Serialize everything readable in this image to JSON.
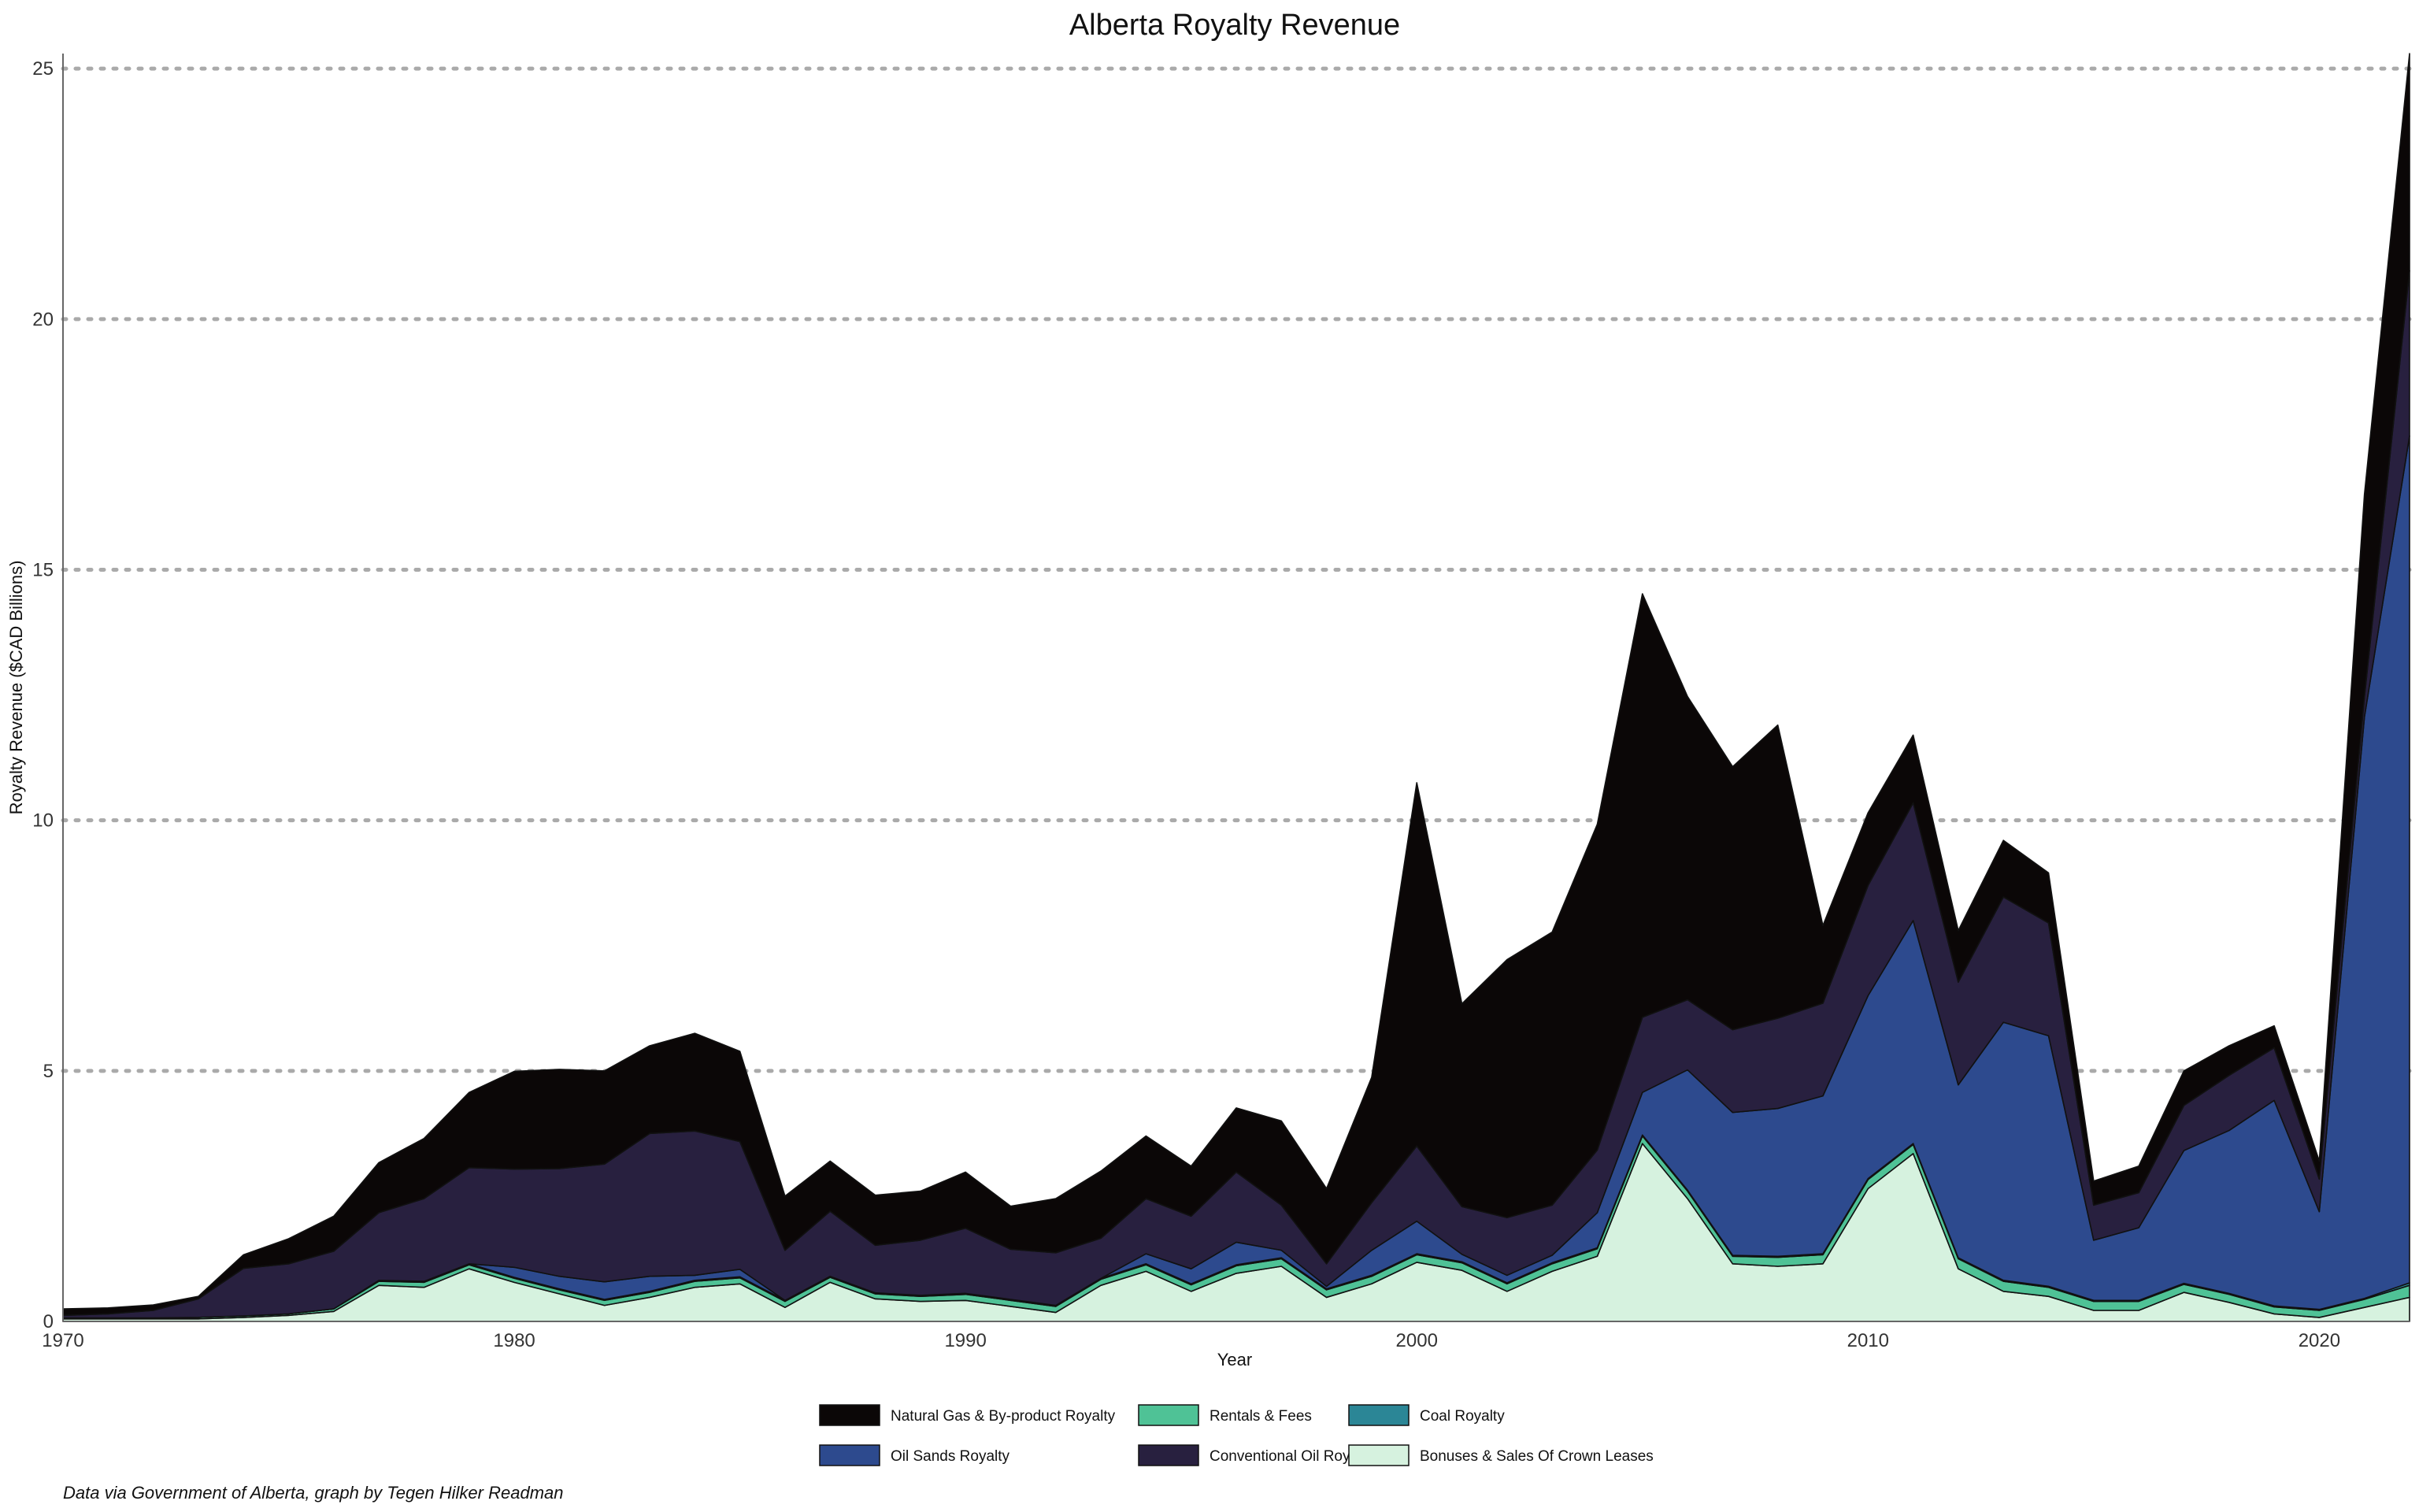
{
  "chart_data": {
    "type": "area",
    "stacked": true,
    "title": "Alberta Royalty Revenue",
    "xlabel": "Year",
    "ylabel": "Royalty Revenue ($CAD Billions)",
    "xlim": [
      1970,
      2022
    ],
    "ylim": [
      0,
      25.3
    ],
    "x_ticks": [
      1970,
      1980,
      1990,
      2000,
      2010,
      2020
    ],
    "y_ticks": [
      0,
      5,
      10,
      15,
      20,
      25
    ],
    "grid": "horizontal dotted",
    "legend_position": "bottom",
    "caption": "Data via Government of Alberta, graph by Tegen Hilker Readman",
    "x": [
      1970,
      1971,
      1972,
      1973,
      1974,
      1975,
      1976,
      1977,
      1978,
      1979,
      1980,
      1981,
      1982,
      1983,
      1984,
      1985,
      1986,
      1987,
      1988,
      1989,
      1990,
      1991,
      1992,
      1993,
      1994,
      1995,
      1996,
      1997,
      1998,
      1999,
      2000,
      2001,
      2002,
      2003,
      2004,
      2005,
      2006,
      2007,
      2008,
      2009,
      2010,
      2011,
      2012,
      2013,
      2014,
      2015,
      2016,
      2017,
      2018,
      2019,
      2020,
      2021,
      2022
    ],
    "series": [
      {
        "name": "Bonuses & Sales Of Crown Leases",
        "color": "#d6f2df",
        "values": [
          0.05,
          0.05,
          0.05,
          0.05,
          0.08,
          0.12,
          0.2,
          0.72,
          0.68,
          1.05,
          0.78,
          0.55,
          0.32,
          0.48,
          0.68,
          0.75,
          0.28,
          0.78,
          0.45,
          0.4,
          0.42,
          0.3,
          0.18,
          0.72,
          1,
          0.6,
          0.96,
          1.1,
          0.48,
          0.75,
          1.18,
          1.02,
          0.6,
          1,
          1.3,
          3.55,
          2.45,
          1.15,
          1.1,
          1.15,
          2.65,
          3.35,
          1.05,
          0.6,
          0.5,
          0.22,
          0.22,
          0.58,
          0.38,
          0.15,
          0.08,
          0.28,
          0.48
        ]
      },
      {
        "name": "Rentals & Fees",
        "color": "#4fc296",
        "values": [
          0.02,
          0.02,
          0.02,
          0.03,
          0.03,
          0.03,
          0.05,
          0.08,
          0.1,
          0.08,
          0.08,
          0.08,
          0.1,
          0.1,
          0.12,
          0.12,
          0.12,
          0.1,
          0.1,
          0.1,
          0.12,
          0.12,
          0.12,
          0.12,
          0.13,
          0.13,
          0.15,
          0.15,
          0.15,
          0.15,
          0.15,
          0.15,
          0.15,
          0.15,
          0.15,
          0.15,
          0.15,
          0.15,
          0.18,
          0.18,
          0.18,
          0.18,
          0.2,
          0.2,
          0.18,
          0.18,
          0.18,
          0.16,
          0.16,
          0.14,
          0.14,
          0.16,
          0.24
        ]
      },
      {
        "name": "Coal Royalty",
        "color": "#2b8696",
        "values": [
          0,
          0,
          0,
          0,
          0,
          0,
          0,
          0.02,
          0.02,
          0.02,
          0.02,
          0.02,
          0.02,
          0.02,
          0.02,
          0.02,
          0.02,
          0.02,
          0.02,
          0.02,
          0.02,
          0.02,
          0.02,
          0.02,
          0.02,
          0.02,
          0.02,
          0.02,
          0.02,
          0.02,
          0.02,
          0.02,
          0.02,
          0.02,
          0.02,
          0.02,
          0.02,
          0.02,
          0.02,
          0.02,
          0.02,
          0.02,
          0.02,
          0.02,
          0.02,
          0.02,
          0.02,
          0.02,
          0.02,
          0.02,
          0.02,
          0.02,
          0.05
        ]
      },
      {
        "name": "Oil Sands Royalty",
        "color": "#2d4a8e",
        "values": [
          0,
          0,
          0,
          0,
          0,
          0,
          0,
          0,
          0,
          0,
          0.2,
          0.25,
          0.35,
          0.3,
          0.1,
          0.15,
          0,
          0,
          0,
          0,
          0,
          0,
          0,
          0,
          0.2,
          0.3,
          0.45,
          0.15,
          0.05,
          0.5,
          0.65,
          0.15,
          0.15,
          0.15,
          0.7,
          0.85,
          2.4,
          2.85,
          2.95,
          3.15,
          3.65,
          4.45,
          3.45,
          5.15,
          5.0,
          1.2,
          1.45,
          2.65,
          3.25,
          4.1,
          1.95,
          11.6,
          16.9
        ]
      },
      {
        "name": "Conventional Oil Royalty",
        "color": "#28203f",
        "values": [
          0.05,
          0.08,
          0.15,
          0.37,
          0.95,
          1.0,
          1.15,
          1.35,
          1.65,
          1.92,
          1.96,
          2.15,
          2.35,
          2.85,
          2.88,
          2.55,
          1.0,
          1.3,
          0.95,
          1.1,
          1.3,
          1.0,
          1.05,
          0.8,
          1.1,
          1.05,
          1.4,
          0.9,
          0.45,
          0.95,
          1.5,
          0.95,
          1.15,
          1.0,
          1.25,
          1.5,
          1.4,
          1.65,
          1.8,
          1.85,
          2.2,
          2.35,
          2.05,
          2.5,
          2.25,
          0.7,
          0.7,
          0.9,
          1.1,
          1.05,
          0.65,
          0.4,
          3.3
        ]
      },
      {
        "name": "Natural Gas & By-product Royalty",
        "color": "#0b0707",
        "values": [
          0.13,
          0.12,
          0.11,
          0.05,
          0.27,
          0.5,
          0.7,
          1.0,
          1.2,
          1.5,
          1.95,
          1.98,
          1.86,
          1.75,
          1.95,
          1.8,
          1.08,
          1.0,
          1.0,
          0.98,
          1.12,
          0.86,
          1.08,
          1.34,
          1.25,
          1.0,
          1.28,
          1.68,
          1.5,
          2.5,
          7.25,
          4.05,
          5.15,
          5.45,
          6.5,
          8.45,
          6.05,
          5.25,
          5.85,
          1.55,
          1.45,
          1.35,
          1.03,
          1.13,
          1.0,
          0.48,
          0.53,
          0.69,
          0.59,
          0.44,
          0.36,
          4.04,
          4.33
        ]
      }
    ],
    "legend_order": [
      "Natural Gas & By-product Royalty",
      "Oil Sands Royalty",
      "Rentals & Fees",
      "Conventional Oil Royalty",
      "Coal Royalty",
      "Bonuses & Sales Of Crown Leases"
    ]
  }
}
